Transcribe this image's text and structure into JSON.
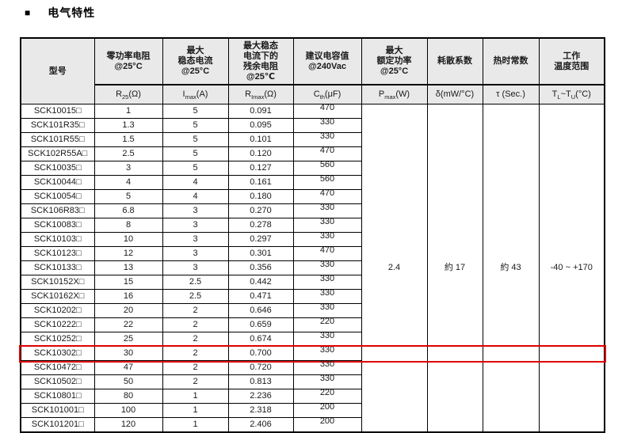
{
  "accent_color": "#e00000",
  "header_bg": "#e9e9e9",
  "title": {
    "bullet": "■",
    "text": "电气特性"
  },
  "table": {
    "model_header": "型号",
    "group_headers": [
      {
        "name": "zero-power-resistance",
        "lines": [
          "零功率电阻",
          "@25°C"
        ]
      },
      {
        "name": "max-steady-state-current",
        "lines": [
          "最大",
          "稳态电流",
          "@25°C"
        ]
      },
      {
        "name": "residual-resistance-at-imax",
        "lines": [
          "最大稳态",
          "电流下的",
          "残余电阻",
          "@25℃"
        ]
      },
      {
        "name": "recommended-capacitance",
        "lines": [
          "建议电容值",
          "@240Vac"
        ]
      },
      {
        "name": "max-rated-power",
        "lines": [
          "最大",
          "额定功率",
          "@25°C"
        ]
      },
      {
        "name": "dissipation-factor",
        "lines": [
          "耗散系数"
        ]
      },
      {
        "name": "thermal-time-constant",
        "lines": [
          "热时常数"
        ]
      },
      {
        "name": "operating-temperature-range",
        "lines": [
          "工作",
          "温度范围"
        ]
      }
    ],
    "subheaders": [
      {
        "seg0": "R",
        "seg1": "25",
        "seg2": "(Ω)"
      },
      {
        "seg0": "I",
        "seg1": "max",
        "seg2": "(A)"
      },
      {
        "seg0": "R",
        "seg1": "Imax",
        "seg2": "(Ω)"
      },
      {
        "seg0": "C",
        "seg1": "th",
        "seg2": "(μF)"
      },
      {
        "seg0": "P",
        "seg1": "max",
        "seg2": "(W)"
      },
      {
        "seg0": "δ(mW/°C)"
      },
      {
        "seg0": "τ (Sec.)"
      },
      {
        "seg0": "T",
        "seg1": "L",
        "seg2": "~T",
        "seg3": "U",
        "seg4": "(°C)"
      }
    ],
    "rows": [
      {
        "model": "SCK10015□",
        "r25": "1",
        "imax": "5",
        "rimax": "0.091",
        "cth": "470"
      },
      {
        "model": "SCK101R35□",
        "r25": "1.3",
        "imax": "5",
        "rimax": "0.095",
        "cth": "330"
      },
      {
        "model": "SCK101R55□",
        "r25": "1.5",
        "imax": "5",
        "rimax": "0.101",
        "cth": "330"
      },
      {
        "model": "SCK102R55A□",
        "r25": "2.5",
        "imax": "5",
        "rimax": "0.120",
        "cth": "470"
      },
      {
        "model": "SCK10035□",
        "r25": "3",
        "imax": "5",
        "rimax": "0.127",
        "cth": "560"
      },
      {
        "model": "SCK10044□",
        "r25": "4",
        "imax": "4",
        "rimax": "0.161",
        "cth": "560"
      },
      {
        "model": "SCK10054□",
        "r25": "5",
        "imax": "4",
        "rimax": "0.180",
        "cth": "470"
      },
      {
        "model": "SCK106R83□",
        "r25": "6.8",
        "imax": "3",
        "rimax": "0.270",
        "cth": "330"
      },
      {
        "model": "SCK10083□",
        "r25": "8",
        "imax": "3",
        "rimax": "0.278",
        "cth": "330"
      },
      {
        "model": "SCK10103□",
        "r25": "10",
        "imax": "3",
        "rimax": "0.297",
        "cth": "330"
      },
      {
        "model": "SCK10123□",
        "r25": "12",
        "imax": "3",
        "rimax": "0.301",
        "cth": "470"
      },
      {
        "model": "SCK10133□",
        "r25": "13",
        "imax": "3",
        "rimax": "0.356",
        "cth": "330"
      },
      {
        "model": "SCK10152X□",
        "r25": "15",
        "imax": "2.5",
        "rimax": "0.442",
        "cth": "330"
      },
      {
        "model": "SCK10162X□",
        "r25": "16",
        "imax": "2.5",
        "rimax": "0.471",
        "cth": "330"
      },
      {
        "model": "SCK10202□",
        "r25": "20",
        "imax": "2",
        "rimax": "0.646",
        "cth": "330"
      },
      {
        "model": "SCK10222□",
        "r25": "22",
        "imax": "2",
        "rimax": "0.659",
        "cth": "220"
      },
      {
        "model": "SCK10252□",
        "r25": "25",
        "imax": "2",
        "rimax": "0.674",
        "cth": "330"
      },
      {
        "model": "SCK10302□",
        "r25": "30",
        "imax": "2",
        "rimax": "0.700",
        "cth": "330"
      },
      {
        "model": "SCK10472□",
        "r25": "47",
        "imax": "2",
        "rimax": "0.720",
        "cth": "330"
      },
      {
        "model": "SCK10502□",
        "r25": "50",
        "imax": "2",
        "rimax": "0.813",
        "cth": "330"
      },
      {
        "model": "SCK10801□",
        "r25": "80",
        "imax": "1",
        "rimax": "2.236",
        "cth": "220"
      },
      {
        "model": "SCK101001□",
        "r25": "100",
        "imax": "1",
        "rimax": "2.318",
        "cth": "200"
      },
      {
        "model": "SCK101201□",
        "r25": "120",
        "imax": "1",
        "rimax": "2.406",
        "cth": "200"
      }
    ],
    "highlight_row_index": 17,
    "merged": {
      "pmax": "2.4",
      "dissipation": "約 17",
      "tau": "約 43",
      "temp_range": "-40 ~ +170"
    }
  }
}
